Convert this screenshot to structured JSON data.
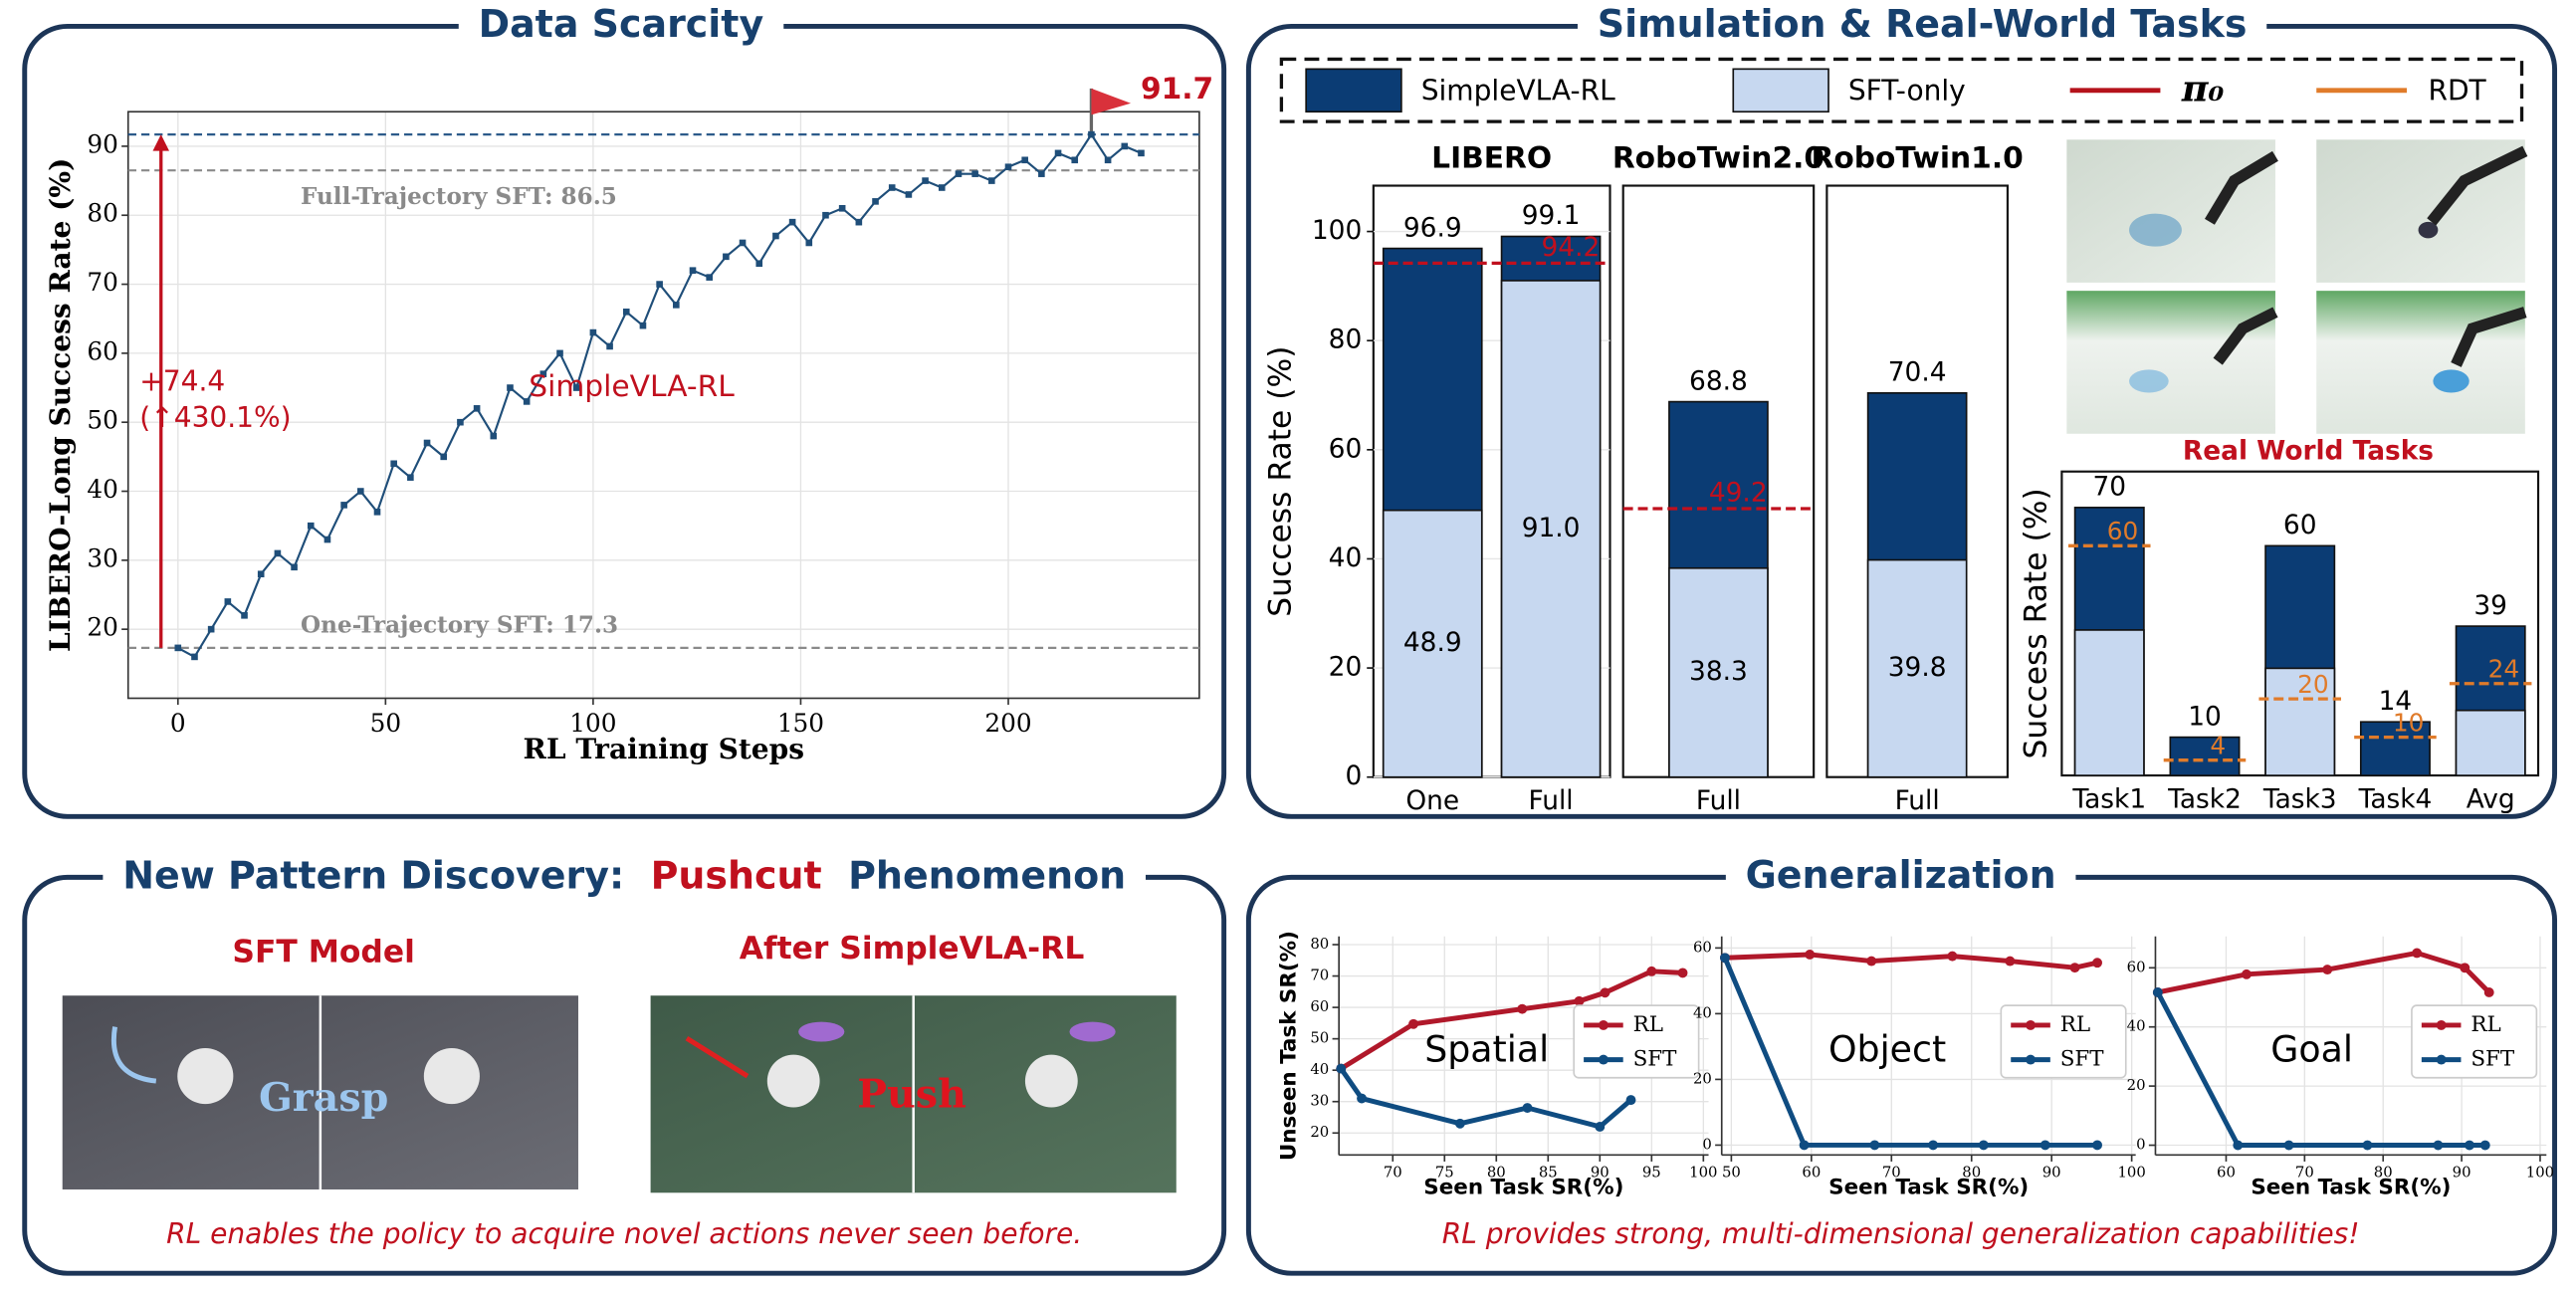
{
  "sections": [
    {
      "title": "Data Scarcity"
    },
    {
      "title": "Simulation & Real-World Tasks",
      "legend": [
        {
          "name": "SimpleVLA-RL",
          "color": "#0b3c74",
          "style": "box"
        },
        {
          "name": "SFT-only",
          "color": "#c7d8f0",
          "style": "box"
        },
        {
          "name": "π₀",
          "color": "#b5121b",
          "style": "line"
        },
        {
          "name": "RDT",
          "color": "#e07b2a",
          "style": "line"
        }
      ],
      "image_caption": "Real World Tasks"
    },
    {
      "title_parts": [
        "New Pattern Discovery:",
        "Pushcut",
        "Phenomenon"
      ],
      "left_label": "SFT Model",
      "left_overlay": "Grasp",
      "right_label": "After SimpleVLA-RL",
      "right_overlay": "Push",
      "caption": "RL enables the policy to acquire novel actions never seen before."
    },
    {
      "title": "Generalization",
      "caption": "RL provides strong, multi-dimensional generalization capabilities!"
    }
  ],
  "chart_data": [
    {
      "type": "line",
      "xlabel": "RL Training Steps",
      "ylabel": "LIBERO-Long Success Rate (%)",
      "x": [
        0,
        4,
        8,
        12,
        16,
        20,
        24,
        28,
        32,
        36,
        40,
        44,
        48,
        52,
        56,
        60,
        64,
        68,
        72,
        76,
        80,
        84,
        88,
        92,
        96,
        100,
        104,
        108,
        112,
        116,
        120,
        124,
        128,
        132,
        136,
        140,
        144,
        148,
        152,
        156,
        160,
        164,
        168,
        172,
        176,
        180,
        184,
        188,
        192,
        196,
        200,
        204,
        208,
        212,
        216,
        220,
        224,
        228,
        232
      ],
      "series": [
        {
          "name": "SimpleVLA-RL",
          "color": "#1f4e79",
          "values": [
            17.3,
            16,
            20,
            24,
            22,
            28,
            31,
            29,
            35,
            33,
            38,
            40,
            37,
            44,
            42,
            47,
            45,
            50,
            52,
            48,
            55,
            53,
            57,
            60,
            55,
            63,
            61,
            66,
            64,
            70,
            67,
            72,
            71,
            74,
            76,
            73,
            77,
            79,
            76,
            80,
            81,
            79,
            82,
            84,
            83,
            85,
            84,
            86,
            86,
            85,
            87,
            88,
            86,
            89,
            88,
            91.7,
            88,
            90,
            89
          ]
        }
      ],
      "xlim": [
        -12,
        246
      ],
      "ylim": [
        10,
        95
      ],
      "xticks": [
        0,
        50,
        100,
        150,
        200
      ],
      "yticks": [
        20,
        30,
        40,
        50,
        60,
        70,
        80,
        90
      ],
      "grid": true,
      "legend": "inline",
      "reference_lines": [
        {
          "value": 86.5,
          "label": "Full-Trajectory SFT: 86.5",
          "color": "#8a8a8a"
        },
        {
          "value": 17.3,
          "label": "One-Trajectory SFT: 17.3",
          "color": "#8a8a8a"
        },
        {
          "value": 91.7,
          "label": "91.7",
          "color": "#2c5a8a",
          "label_color": "#c0101e",
          "flag": true
        }
      ],
      "annotations": [
        "+74.4",
        "(↑430.1%)"
      ]
    },
    {
      "type": "bar",
      "title": "LIBERO",
      "ylabel": "Success Rate (%)",
      "categories": [
        "One",
        "Full"
      ],
      "series": [
        {
          "color": "#0b3c74",
          "values": [
            96.9,
            99.1
          ],
          "labeled": true
        },
        {
          "color": "#c7d8f0",
          "values": [
            48.9,
            91.0
          ],
          "value_labels": [
            "48.9",
            "91.0"
          ],
          "labeled": true
        }
      ],
      "ylim": [
        0,
        108.4
      ],
      "yticks": [
        0,
        20,
        40,
        60,
        80,
        100
      ],
      "grid": true,
      "reference": {
        "value": 94.2,
        "color": "#c0101e"
      }
    },
    {
      "type": "bar",
      "title": "RoboTwin2.0",
      "categories": [
        "Full"
      ],
      "series": [
        {
          "color": "#0b3c74",
          "values": [
            68.8
          ],
          "labeled": true
        },
        {
          "color": "#c7d8f0",
          "values": [
            38.3
          ],
          "labeled": true
        }
      ],
      "ylim": [
        0,
        108.4
      ],
      "reference": {
        "value": 49.2,
        "color": "#c0101e"
      }
    },
    {
      "type": "bar",
      "title": "RoboTwin1.0",
      "categories": [
        "Full"
      ],
      "series": [
        {
          "color": "#0b3c74",
          "values": [
            70.4
          ],
          "labeled": true
        },
        {
          "color": "#c7d8f0",
          "values": [
            39.8
          ],
          "labeled": true
        }
      ],
      "ylim": [
        0,
        108.4
      ]
    },
    {
      "type": "bar",
      "ylabel": "Success Rate (%)",
      "categories": [
        "Task1",
        "Task2",
        "Task3",
        "Task4",
        "Avg"
      ],
      "series": [
        {
          "color": "#0b3c74",
          "values": [
            70,
            10,
            60,
            14,
            39
          ],
          "labeled": true
        },
        {
          "color": "#c7d8f0",
          "values": [
            38,
            0,
            28,
            0,
            17
          ]
        }
      ],
      "ylim": [
        0,
        79.4
      ],
      "markers": {
        "color": "#e07b2a",
        "values": [
          60,
          4,
          20,
          10,
          24
        ]
      }
    },
    {
      "type": "line",
      "label": "Spatial",
      "xlabel": "Seen Task SR(%)",
      "ylabel": "Unseen Task SR(%)",
      "series": [
        {
          "name": "RL",
          "color": "#b0182a",
          "x": [
            65,
            72,
            82.5,
            88,
            90.5,
            95,
            98
          ],
          "values": [
            40.5,
            54.7,
            59.5,
            62,
            64.7,
            71.5,
            71
          ]
        },
        {
          "name": "SFT",
          "color": "#0f4c81",
          "x": [
            65,
            67,
            76.5,
            83,
            90,
            93
          ],
          "values": [
            40.5,
            31,
            23,
            28,
            22,
            30.5
          ]
        }
      ],
      "xlim": [
        64.8,
        100.5
      ],
      "ylim": [
        13,
        82.6
      ],
      "xticks": [
        70,
        75,
        80,
        85,
        90,
        95,
        100
      ],
      "yticks": [
        20,
        30,
        40,
        50,
        60,
        70,
        80
      ],
      "grid": true,
      "legend": "center right"
    },
    {
      "type": "line",
      "label": "Object",
      "xlabel": "Seen Task SR(%)",
      "series": [
        {
          "name": "RL",
          "color": "#b0182a",
          "x": [
            49.2,
            59.8,
            67.5,
            77.6,
            84.8,
            92.9,
            95.7
          ],
          "values": [
            57,
            58,
            56,
            57.5,
            56,
            54,
            55.5
          ]
        },
        {
          "name": "SFT",
          "color": "#0f4c81",
          "x": [
            49.2,
            59.1,
            67.9,
            75.2,
            81.5,
            89.2,
            95.7
          ],
          "values": [
            57,
            0,
            0,
            0,
            0,
            0,
            0
          ]
        }
      ],
      "xlim": [
        48.8,
        100.5
      ],
      "ylim": [
        -3,
        63.5
      ],
      "xticks": [
        50,
        60,
        70,
        80,
        90,
        100
      ],
      "yticks": [
        0,
        20,
        40,
        60
      ],
      "grid": true,
      "legend": "center right"
    },
    {
      "type": "line",
      "label": "Goal",
      "xlabel": "Seen Task SR(%)",
      "series": [
        {
          "name": "RL",
          "color": "#b0182a",
          "x": [
            51.3,
            62.6,
            72.9,
            84.3,
            90.4,
            93.5
          ],
          "values": [
            51.7,
            57.8,
            59.4,
            65,
            60,
            51.7
          ]
        },
        {
          "name": "SFT",
          "color": "#0f4c81",
          "x": [
            51.3,
            61.5,
            68,
            78,
            87,
            91,
            93
          ],
          "values": [
            51.7,
            0,
            0,
            0,
            0,
            0,
            0
          ]
        }
      ],
      "xlim": [
        51,
        100.8
      ],
      "ylim": [
        -3.3,
        70.6
      ],
      "xticks": [
        60,
        70,
        80,
        90,
        100
      ],
      "yticks": [
        0,
        20,
        40,
        60
      ],
      "grid": true,
      "legend": "center right"
    }
  ]
}
